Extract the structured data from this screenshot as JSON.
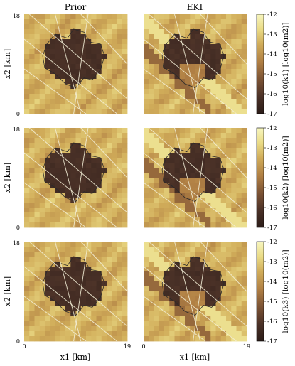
{
  "chart_data": {
    "type": "heatmap",
    "columns": [
      "Prior",
      "EKI"
    ],
    "rows": [
      {
        "cb_label": "log10(k1) [log10(m2)]"
      },
      {
        "cb_label": "log10(k2) [log10(m2)]"
      },
      {
        "cb_label": "log10(k3) [log10(m2)]"
      }
    ],
    "xlabel": "x1 [km]",
    "ylabel": "x2 [km]",
    "xlim": [
      0,
      19
    ],
    "ylim": [
      0,
      18
    ],
    "x_ticks": [
      "0",
      "19"
    ],
    "y_ticks": [
      "0",
      "18"
    ],
    "colorbar": {
      "range": [
        -17,
        -12
      ],
      "ticks": [
        "-12",
        "-13",
        "-14",
        "-15",
        "-16",
        "-17"
      ],
      "colors": [
        "#2b1c18",
        "#4a3127",
        "#7a5234",
        "#b07f44",
        "#d1ad5a",
        "#eadb86",
        "#f7f6bf"
      ]
    },
    "grid_cells": 20
  }
}
